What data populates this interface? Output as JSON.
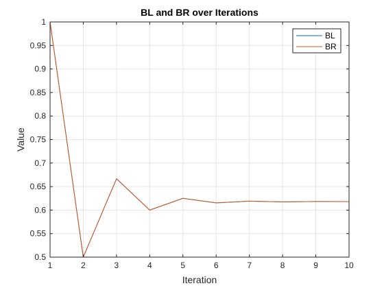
{
  "chart_data": {
    "type": "line",
    "title": "BL and BR over Iterations",
    "xlabel": "Iteration",
    "ylabel": "Value",
    "xlim": [
      1,
      10
    ],
    "ylim": [
      0.5,
      1
    ],
    "xticks": [
      "1",
      "2",
      "3",
      "4",
      "5",
      "6",
      "7",
      "8",
      "9",
      "10"
    ],
    "yticks": [
      "0.5",
      "0.55",
      "0.6",
      "0.65",
      "0.7",
      "0.75",
      "0.8",
      "0.85",
      "0.9",
      "0.95",
      "1"
    ],
    "grid": true,
    "legend_position": "top-right",
    "x": [
      1,
      2,
      3,
      4,
      5,
      6,
      7,
      8,
      9,
      10
    ],
    "series": [
      {
        "name": "BL",
        "color": "#0072BD",
        "values": [
          1,
          0.5,
          0.6667,
          0.6,
          0.625,
          0.6154,
          0.619,
          0.6176,
          0.6182,
          0.618
        ]
      },
      {
        "name": "BR",
        "color": "#D95319",
        "values": [
          1,
          0.5,
          0.6667,
          0.6,
          0.625,
          0.6154,
          0.619,
          0.6176,
          0.6182,
          0.618
        ]
      }
    ]
  }
}
